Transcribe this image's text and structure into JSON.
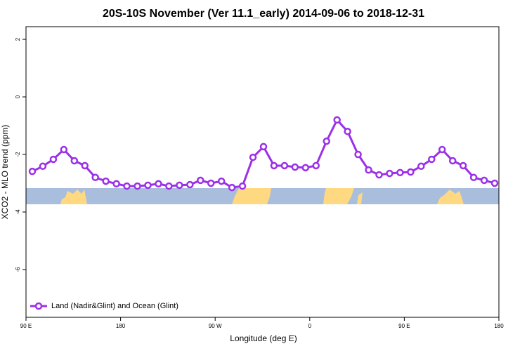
{
  "chart_data": {
    "type": "line",
    "title": "20S-10S November (Ver 11.1_early)   2014-09-06 to 2018-12-31",
    "x_label": "Longitude (deg E)",
    "y_label": "XCO2 - MLO trend (ppm)",
    "x": [
      96,
      106,
      116,
      126,
      136,
      146,
      156,
      166,
      176,
      186,
      196,
      206,
      216,
      226,
      236,
      246,
      256,
      266,
      276,
      286,
      296,
      306,
      316,
      326,
      336,
      346,
      356,
      366,
      376,
      386,
      396,
      406,
      416,
      426,
      436,
      446,
      456,
      466,
      476,
      486,
      496,
      506,
      516,
      526,
      536
    ],
    "series": [
      {
        "name": "Land (Nadir&Glint) and Ocean (Glint)",
        "color": "#9b30e8",
        "values": [
          -2.59,
          -2.41,
          -2.17,
          -1.83,
          -2.22,
          -2.39,
          -2.8,
          -2.93,
          -3.02,
          -3.1,
          -3.1,
          -3.07,
          -3.02,
          -3.1,
          -3.07,
          -3.05,
          -2.9,
          -3.0,
          -2.93,
          -3.15,
          -3.1,
          -2.1,
          -1.73,
          -2.39,
          -2.39,
          -2.44,
          -2.46,
          -2.39,
          -1.54,
          -0.8,
          -1.2,
          -2.0,
          -2.54,
          -2.71,
          -2.66,
          -2.63,
          -2.61,
          -2.41,
          -2.17,
          -1.83,
          -2.22,
          -2.39,
          -2.8,
          -2.9,
          -3.0
        ]
      }
    ],
    "xlim": [
      90,
      540
    ],
    "xticks": [
      {
        "value": 90,
        "label": "90 E"
      },
      {
        "value": 180,
        "label": "180"
      },
      {
        "value": 270,
        "label": "90 W"
      },
      {
        "value": 360,
        "label": "0"
      },
      {
        "value": 450,
        "label": "90 E"
      },
      {
        "value": 540,
        "label": "180"
      }
    ],
    "ylim": [
      -7.66,
      2.44
    ],
    "yticks": [
      -6,
      -4,
      -2,
      0,
      2
    ],
    "legend": "bottom-left"
  }
}
